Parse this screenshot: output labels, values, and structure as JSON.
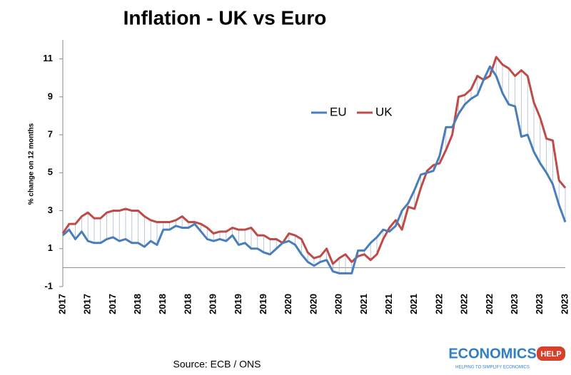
{
  "chart_data": {
    "type": "line",
    "title": "Inflation - UK vs Euro",
    "y_label": "% change on 12 months",
    "source": "Source: ECB / ONS",
    "categories": [
      "2017",
      null,
      null,
      null,
      "2017",
      null,
      null,
      null,
      "2017",
      null,
      null,
      null,
      "2018",
      null,
      null,
      null,
      "2018",
      null,
      null,
      null,
      "2018",
      null,
      null,
      null,
      "2019",
      null,
      null,
      null,
      "2019",
      null,
      null,
      null,
      "2019",
      null,
      null,
      null,
      "2020",
      null,
      null,
      null,
      "2020",
      null,
      null,
      null,
      "2020",
      null,
      null,
      null,
      "2021",
      null,
      null,
      null,
      "2021",
      null,
      null,
      null,
      "2021",
      null,
      null,
      null,
      "2022",
      null,
      null,
      null,
      "2022",
      null,
      null,
      null,
      "2022",
      null,
      null,
      null,
      "2023",
      null,
      null,
      null,
      "2023",
      null,
      null,
      null,
      "2023"
    ],
    "series": [
      {
        "name": "EU",
        "color": "#4a7ebb",
        "values": [
          1.7,
          2.0,
          1.5,
          1.9,
          1.4,
          1.3,
          1.3,
          1.5,
          1.6,
          1.4,
          1.5,
          1.3,
          1.3,
          1.1,
          1.4,
          1.2,
          2.0,
          2.0,
          2.2,
          2.1,
          2.1,
          2.3,
          1.9,
          1.5,
          1.4,
          1.5,
          1.4,
          1.7,
          1.2,
          1.3,
          1.0,
          1.0,
          0.8,
          0.7,
          1.0,
          1.3,
          1.4,
          1.2,
          0.7,
          0.3,
          0.1,
          0.3,
          0.4,
          -0.2,
          -0.3,
          -0.3,
          -0.3,
          0.9,
          0.9,
          1.3,
          1.6,
          2.0,
          1.9,
          2.2,
          3.0,
          3.4,
          4.1,
          4.9,
          5.0,
          5.1,
          5.9,
          7.4,
          7.4,
          8.1,
          8.6,
          8.9,
          9.1,
          9.9,
          10.6,
          10.1,
          9.2,
          8.6,
          8.5,
          6.9,
          7.0,
          6.1,
          5.5,
          5.0,
          4.4,
          3.3,
          2.4
        ]
      },
      {
        "name": "UK",
        "color": "#be4b48",
        "values": [
          1.8,
          2.3,
          2.3,
          2.7,
          2.9,
          2.6,
          2.6,
          2.9,
          3.0,
          3.0,
          3.1,
          3.0,
          3.0,
          2.7,
          2.5,
          2.4,
          2.4,
          2.4,
          2.5,
          2.7,
          2.4,
          2.4,
          2.3,
          2.1,
          1.8,
          1.9,
          1.9,
          2.1,
          2.0,
          2.0,
          2.1,
          1.7,
          1.7,
          1.5,
          1.5,
          1.3,
          1.8,
          1.7,
          1.5,
          0.8,
          0.5,
          0.6,
          1.0,
          0.2,
          0.5,
          0.7,
          0.3,
          0.6,
          0.7,
          0.4,
          0.7,
          1.5,
          2.1,
          2.5,
          2.0,
          3.2,
          3.1,
          4.2,
          5.1,
          5.4,
          5.5,
          6.2,
          7.0,
          9.0,
          9.1,
          9.4,
          10.1,
          9.9,
          10.1,
          11.1,
          10.7,
          10.5,
          10.1,
          10.4,
          10.1,
          8.7,
          7.9,
          6.8,
          6.7,
          4.6,
          4.2
        ]
      }
    ],
    "ylim": [
      -1,
      12
    ],
    "yticks": [
      -1,
      1,
      3,
      5,
      7,
      9,
      11
    ],
    "legend": "top-center"
  },
  "logo": {
    "name": "ECONOMICS",
    "badge": "HELP",
    "tagline": "HELPING TO SIMPLIFY ECONOMICS"
  }
}
